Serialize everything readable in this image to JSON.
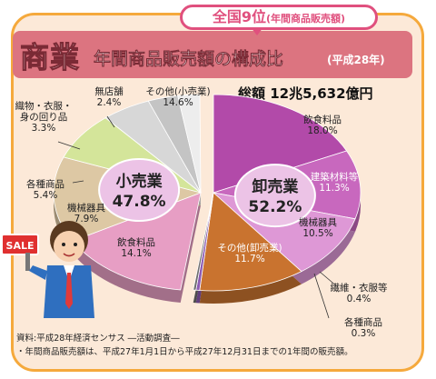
{
  "header": {
    "badge_main": "全国9位",
    "badge_sub": "(年間商品販売額)",
    "title_main": "商業",
    "title_sub": "年間商品販売額の構成比",
    "title_year": "(平成28年)"
  },
  "total_label": "総額 12兆5,632億円",
  "footer": {
    "source": "資料:平成28年経済センサス ―活動調査―",
    "note": "・年間商品販売額は、平成27年1月1日から平成27年12月31日までの1年間の販売額。"
  },
  "illustration": {
    "sign_text": "SALE"
  },
  "chart_data": {
    "type": "pie",
    "title": "年間商品販売額の構成比",
    "groups": [
      {
        "name": "小売業",
        "value": "47.8%",
        "slices": [
          {
            "name": "その他(小売業)",
            "value": "14.6%",
            "pct": 14.6,
            "color": "#e79ec4"
          },
          {
            "name": "飲食料品",
            "value": "14.1%",
            "pct": 14.1,
            "color": "#ddc8a4"
          },
          {
            "name": "機械器具",
            "value": "7.9%",
            "pct": 7.9,
            "color": "#d4e59a"
          },
          {
            "name": "各種商品",
            "value": "5.4%",
            "pct": 5.4,
            "color": "#d7d7d7"
          },
          {
            "name": "織物・衣服・身の回り品",
            "value": "3.3%",
            "pct": 3.3,
            "color": "#c4c4c4"
          },
          {
            "name": "無店舗",
            "value": "2.4%",
            "pct": 2.4,
            "color": "#ededed"
          }
        ]
      },
      {
        "name": "卸売業",
        "value": "52.2%",
        "slices": [
          {
            "name": "飲食料品",
            "value": "18.0%",
            "pct": 18.0,
            "color": "#b24aa9"
          },
          {
            "name": "建築材料等",
            "value": "11.3%",
            "pct": 11.3,
            "color": "#c868be"
          },
          {
            "name": "機械器具",
            "value": "10.5%",
            "pct": 10.5,
            "color": "#de98d6"
          },
          {
            "name": "その他(卸売業)",
            "value": "11.7%",
            "pct": 11.7,
            "color": "#c9732f"
          },
          {
            "name": "繊維・衣服等",
            "value": "0.4%",
            "pct": 0.4,
            "color": "#8c5ab3"
          },
          {
            "name": "各種商品",
            "value": "0.3%",
            "pct": 0.3,
            "color": "#6e6e6e"
          }
        ]
      }
    ]
  }
}
